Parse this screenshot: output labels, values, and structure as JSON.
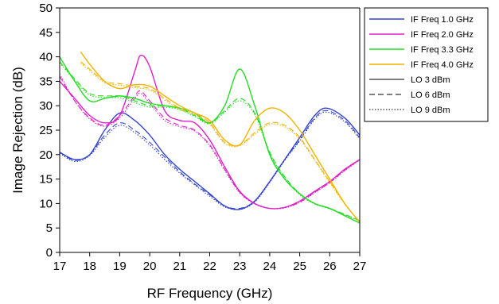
{
  "chart_data": {
    "type": "line",
    "title": "",
    "xlabel": "RF Frequency (GHz)",
    "ylabel": "Image Rejection (dB)",
    "xlim": [
      17,
      27
    ],
    "ylim": [
      0,
      50
    ],
    "xticks": [
      17,
      18,
      19,
      20,
      21,
      22,
      23,
      24,
      25,
      26,
      27
    ],
    "yticks": [
      0,
      5,
      10,
      15,
      20,
      25,
      30,
      35,
      40,
      45,
      50
    ],
    "grid": false,
    "legend_position": "right",
    "legend": [
      {
        "label": "IF Freq 1.0 GHz",
        "color": "#3344cc",
        "style": "solid"
      },
      {
        "label": "IF Freq 2.0 GHz",
        "color": "#e020c8",
        "style": "solid"
      },
      {
        "label": "IF Freq 3.3 GHz",
        "color": "#22dd22",
        "style": "solid"
      },
      {
        "label": "IF Freq 4.0 GHz",
        "color": "#f0b400",
        "style": "solid"
      },
      {
        "label": "LO 3 dBm",
        "color": "#555555",
        "style": "solid"
      },
      {
        "label": "LO 6 dBm",
        "color": "#555555",
        "style": "dashed"
      },
      {
        "label": "LO 9 dBm",
        "color": "#555555",
        "style": "dotted"
      }
    ],
    "series": [
      {
        "if": "1.0",
        "lo": "3",
        "color": "#3344cc",
        "style": "solid",
        "points": [
          [
            17,
            20.5
          ],
          [
            17.5,
            19
          ],
          [
            18,
            20
          ],
          [
            18.5,
            25
          ],
          [
            19,
            28.5
          ],
          [
            19.5,
            27
          ],
          [
            20,
            24
          ],
          [
            20.5,
            20
          ],
          [
            21,
            17
          ],
          [
            21.5,
            14.5
          ],
          [
            22,
            12
          ],
          [
            22.5,
            9.5
          ],
          [
            23,
            8.8
          ],
          [
            23.5,
            10.5
          ],
          [
            24,
            14.5
          ],
          [
            24.5,
            19
          ],
          [
            25,
            23.5
          ],
          [
            25.5,
            28
          ],
          [
            25.9,
            29.5
          ],
          [
            26.5,
            27.5
          ],
          [
            27,
            24
          ]
        ]
      },
      {
        "if": "1.0",
        "lo": "6",
        "color": "#3344cc",
        "style": "dashed",
        "points": [
          [
            17,
            20.5
          ],
          [
            17.5,
            18.8
          ],
          [
            18,
            20
          ],
          [
            18.5,
            24
          ],
          [
            19,
            26.5
          ],
          [
            19.5,
            25
          ],
          [
            20,
            22.5
          ],
          [
            20.5,
            19.5
          ],
          [
            21,
            16.5
          ],
          [
            21.5,
            14
          ],
          [
            22,
            11.8
          ],
          [
            22.5,
            9.5
          ],
          [
            23,
            9
          ],
          [
            23.5,
            10.5
          ],
          [
            24,
            14.5
          ],
          [
            24.5,
            19
          ],
          [
            25,
            23
          ],
          [
            25.5,
            27.5
          ],
          [
            25.9,
            29
          ],
          [
            26.5,
            27
          ],
          [
            27,
            23.5
          ]
        ]
      },
      {
        "if": "1.0",
        "lo": "9",
        "color": "#3344cc",
        "style": "dotted",
        "points": [
          [
            17,
            20.3
          ],
          [
            17.5,
            18.6
          ],
          [
            18,
            19.8
          ],
          [
            18.5,
            23.5
          ],
          [
            19,
            26
          ],
          [
            19.5,
            24.5
          ],
          [
            20,
            22
          ],
          [
            20.5,
            19
          ],
          [
            21,
            16.2
          ],
          [
            21.5,
            13.8
          ],
          [
            22,
            11.5
          ],
          [
            22.5,
            9.3
          ],
          [
            23,
            8.8
          ],
          [
            23.5,
            10.3
          ],
          [
            24,
            14.3
          ],
          [
            24.5,
            18.8
          ],
          [
            25,
            22.8
          ],
          [
            25.5,
            27.2
          ],
          [
            25.9,
            28.7
          ],
          [
            26.5,
            26.7
          ],
          [
            27,
            23.2
          ]
        ]
      },
      {
        "if": "2.0",
        "lo": "3",
        "color": "#e020c8",
        "style": "solid",
        "points": [
          [
            17,
            35
          ],
          [
            17.5,
            31.5
          ],
          [
            18,
            28
          ],
          [
            18.5,
            26.5
          ],
          [
            19,
            28
          ],
          [
            19.5,
            37
          ],
          [
            19.7,
            40.3
          ],
          [
            20,
            38
          ],
          [
            20.5,
            29
          ],
          [
            21,
            27
          ],
          [
            21.5,
            26.5
          ],
          [
            22,
            23
          ],
          [
            22.5,
            17.5
          ],
          [
            23,
            12.5
          ],
          [
            23.5,
            10
          ],
          [
            24,
            9
          ],
          [
            24.5,
            9.2
          ],
          [
            25,
            10.5
          ],
          [
            25.5,
            12.5
          ],
          [
            26,
            14.5
          ],
          [
            26.5,
            17
          ],
          [
            27,
            19
          ]
        ]
      },
      {
        "if": "2.0",
        "lo": "6",
        "color": "#e020c8",
        "style": "dashed",
        "points": [
          [
            17,
            36
          ],
          [
            17.5,
            31
          ],
          [
            18,
            27.5
          ],
          [
            18.5,
            26
          ],
          [
            19,
            28
          ],
          [
            19.5,
            32
          ],
          [
            19.7,
            33
          ],
          [
            20,
            31
          ],
          [
            20.5,
            27.5
          ],
          [
            21,
            26
          ],
          [
            21.5,
            25
          ],
          [
            22,
            22
          ],
          [
            22.5,
            17
          ],
          [
            23,
            12.3
          ],
          [
            23.5,
            10
          ],
          [
            24,
            9
          ],
          [
            24.5,
            9.2
          ],
          [
            25,
            10.3
          ],
          [
            25.5,
            12.3
          ],
          [
            26,
            14.3
          ],
          [
            26.5,
            16.8
          ],
          [
            27,
            19
          ]
        ]
      },
      {
        "if": "2.0",
        "lo": "9",
        "color": "#e020c8",
        "style": "dotted",
        "points": [
          [
            17,
            36.5
          ],
          [
            17.5,
            31
          ],
          [
            18,
            27.3
          ],
          [
            18.5,
            25.8
          ],
          [
            19,
            27.5
          ],
          [
            19.5,
            31.5
          ],
          [
            19.7,
            32.5
          ],
          [
            20,
            30.5
          ],
          [
            20.5,
            27
          ],
          [
            21,
            25.7
          ],
          [
            21.5,
            24.8
          ],
          [
            22,
            21.8
          ],
          [
            22.5,
            16.8
          ],
          [
            23,
            12.2
          ],
          [
            23.5,
            9.9
          ],
          [
            24,
            9
          ],
          [
            24.5,
            9.1
          ],
          [
            25,
            10.2
          ],
          [
            25.5,
            12.2
          ],
          [
            26,
            14.2
          ],
          [
            26.5,
            16.7
          ],
          [
            27,
            18.9
          ]
        ]
      },
      {
        "if": "3.3",
        "lo": "3",
        "color": "#22dd22",
        "style": "solid",
        "points": [
          [
            17,
            40
          ],
          [
            17.5,
            35
          ],
          [
            18,
            31
          ],
          [
            18.5,
            31.5
          ],
          [
            19,
            32
          ],
          [
            19.5,
            31.5
          ],
          [
            20,
            30.5
          ],
          [
            20.5,
            30
          ],
          [
            21,
            29.5
          ],
          [
            21.5,
            28.5
          ],
          [
            22,
            26.5
          ],
          [
            22.5,
            30
          ],
          [
            23,
            37.5
          ],
          [
            23.5,
            30
          ],
          [
            24,
            20
          ],
          [
            24.5,
            15
          ],
          [
            25,
            12
          ],
          [
            25.5,
            10
          ],
          [
            26,
            9
          ],
          [
            26.5,
            7.5
          ],
          [
            27,
            6
          ]
        ]
      },
      {
        "if": "3.3",
        "lo": "6",
        "color": "#22dd22",
        "style": "dashed",
        "points": [
          [
            17,
            39
          ],
          [
            17.5,
            35.5
          ],
          [
            18,
            32.5
          ],
          [
            18.5,
            32
          ],
          [
            19,
            32
          ],
          [
            19.5,
            31
          ],
          [
            20,
            30
          ],
          [
            20.5,
            30
          ],
          [
            21,
            29.5
          ],
          [
            21.5,
            28
          ],
          [
            22,
            26.5
          ],
          [
            22.5,
            29
          ],
          [
            23,
            31.5
          ],
          [
            23.5,
            28.5
          ],
          [
            24,
            20.5
          ],
          [
            24.5,
            15.5
          ],
          [
            25,
            12
          ],
          [
            25.5,
            10
          ],
          [
            26,
            9
          ],
          [
            26.5,
            7.8
          ],
          [
            27,
            6.5
          ]
        ]
      },
      {
        "if": "3.3",
        "lo": "9",
        "color": "#22dd22",
        "style": "dotted",
        "points": [
          [
            17,
            38.8
          ],
          [
            17.5,
            35.2
          ],
          [
            18,
            32.2
          ],
          [
            18.5,
            31.7
          ],
          [
            19,
            31.6
          ],
          [
            19.5,
            30.6
          ],
          [
            20,
            29.7
          ],
          [
            20.5,
            29.7
          ],
          [
            21,
            29.2
          ],
          [
            21.5,
            27.8
          ],
          [
            22,
            26.3
          ],
          [
            22.5,
            28.7
          ],
          [
            23,
            31
          ],
          [
            23.5,
            28.2
          ],
          [
            24,
            20.3
          ],
          [
            24.5,
            15.3
          ],
          [
            25,
            11.8
          ],
          [
            25.5,
            9.9
          ],
          [
            26,
            8.9
          ],
          [
            26.5,
            7.7
          ],
          [
            27,
            6.4
          ]
        ]
      },
      {
        "if": "4.0",
        "lo": "3",
        "color": "#f0b400",
        "style": "solid",
        "points": [
          [
            17.7,
            41
          ],
          [
            18,
            38.5
          ],
          [
            18.5,
            35
          ],
          [
            19,
            33.5
          ],
          [
            19.5,
            34.3
          ],
          [
            20,
            34
          ],
          [
            20.5,
            32
          ],
          [
            21,
            30
          ],
          [
            21.5,
            28.5
          ],
          [
            22,
            27
          ],
          [
            22.5,
            23
          ],
          [
            23,
            22
          ],
          [
            23.5,
            27
          ],
          [
            24,
            29.5
          ],
          [
            24.5,
            28.5
          ],
          [
            25,
            25
          ],
          [
            25.5,
            20
          ],
          [
            26,
            15
          ],
          [
            26.5,
            10
          ],
          [
            27,
            6.2
          ]
        ]
      },
      {
        "if": "4.0",
        "lo": "6",
        "color": "#f0b400",
        "style": "dashed",
        "points": [
          [
            17.7,
            39
          ],
          [
            18,
            37.5
          ],
          [
            18.5,
            35
          ],
          [
            19,
            34.5
          ],
          [
            19.5,
            34
          ],
          [
            20,
            33.5
          ],
          [
            20.5,
            31.5
          ],
          [
            21,
            29.5
          ],
          [
            21.5,
            28.5
          ],
          [
            22,
            26.5
          ],
          [
            22.5,
            22.5
          ],
          [
            23,
            22
          ],
          [
            23.5,
            24.5
          ],
          [
            24,
            26.5
          ],
          [
            24.5,
            26
          ],
          [
            25,
            23.5
          ],
          [
            25.5,
            19
          ],
          [
            26,
            14.5
          ],
          [
            26.5,
            10
          ],
          [
            27,
            6.2
          ]
        ]
      },
      {
        "if": "4.0",
        "lo": "9",
        "color": "#f0b400",
        "style": "dotted",
        "points": [
          [
            17.7,
            38.7
          ],
          [
            18,
            37.2
          ],
          [
            18.5,
            34.7
          ],
          [
            19,
            34.2
          ],
          [
            19.5,
            33.7
          ],
          [
            20,
            33.2
          ],
          [
            20.5,
            31.2
          ],
          [
            21,
            29.2
          ],
          [
            21.5,
            28.2
          ],
          [
            22,
            26.2
          ],
          [
            22.5,
            22.3
          ],
          [
            23,
            21.8
          ],
          [
            23.5,
            24.2
          ],
          [
            24,
            26.2
          ],
          [
            24.5,
            25.7
          ],
          [
            25,
            23.2
          ],
          [
            25.5,
            18.8
          ],
          [
            26,
            14.3
          ],
          [
            26.5,
            9.9
          ],
          [
            27,
            6.1
          ]
        ]
      }
    ]
  }
}
